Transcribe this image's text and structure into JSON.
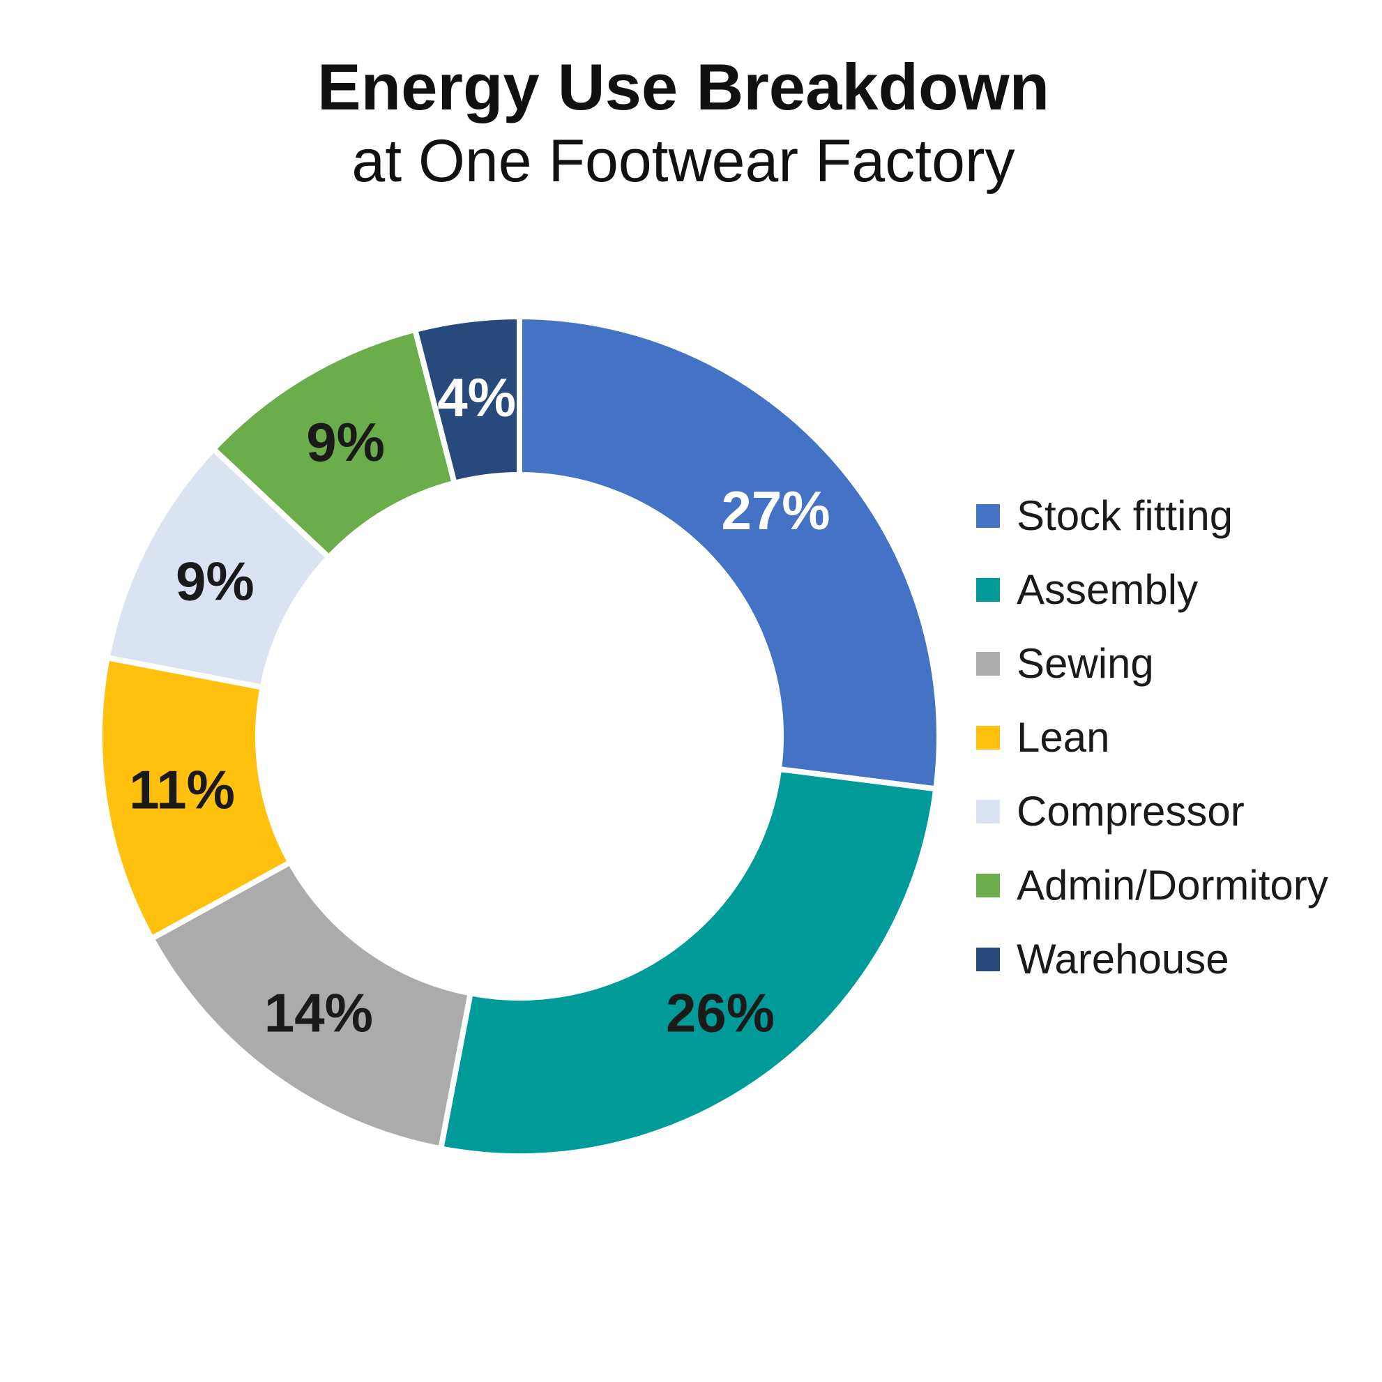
{
  "header": {
    "title": "Energy Use Breakdown",
    "subtitle": "at One Footwear Factory"
  },
  "chart_data": {
    "type": "pie",
    "variant": "donut",
    "title": "Energy Use Breakdown",
    "subtitle": "at One Footwear Factory",
    "legend_position": "right",
    "start_angle_deg": 0,
    "direction": "clockwise",
    "hole_ratio": 0.62,
    "value_suffix": "%",
    "categories": [
      "Stock fitting",
      "Assembly",
      "Sewing",
      "Lean",
      "Compressor",
      "Admin/Dormitory",
      "Warehouse"
    ],
    "values": [
      27,
      26,
      14,
      11,
      9,
      9,
      4
    ],
    "slices": [
      {
        "label": "Stock fitting",
        "value": 27,
        "display": "27%",
        "color": "#4472C4",
        "label_color": "#FFFFFF"
      },
      {
        "label": "Assembly",
        "value": 26,
        "display": "26%",
        "color": "#009B98",
        "label_color": "#1A1A1A"
      },
      {
        "label": "Sewing",
        "value": 14,
        "display": "14%",
        "color": "#ABABAB",
        "label_color": "#1A1A1A"
      },
      {
        "label": "Lean",
        "value": 11,
        "display": "11%",
        "color": "#FFC10E",
        "label_color": "#1A1A1A"
      },
      {
        "label": "Compressor",
        "value": 9,
        "display": "9%",
        "color": "#DBE3F3",
        "label_color": "#1A1A1A"
      },
      {
        "label": "Admin/Dormitory",
        "value": 9,
        "display": "9%",
        "color": "#6CAD4B",
        "label_color": "#1A1A1A"
      },
      {
        "label": "Warehouse",
        "value": 4,
        "display": "4%",
        "color": "#27497B",
        "label_color": "#FFFFFF"
      }
    ],
    "gap_color": "#FFFFFF"
  }
}
